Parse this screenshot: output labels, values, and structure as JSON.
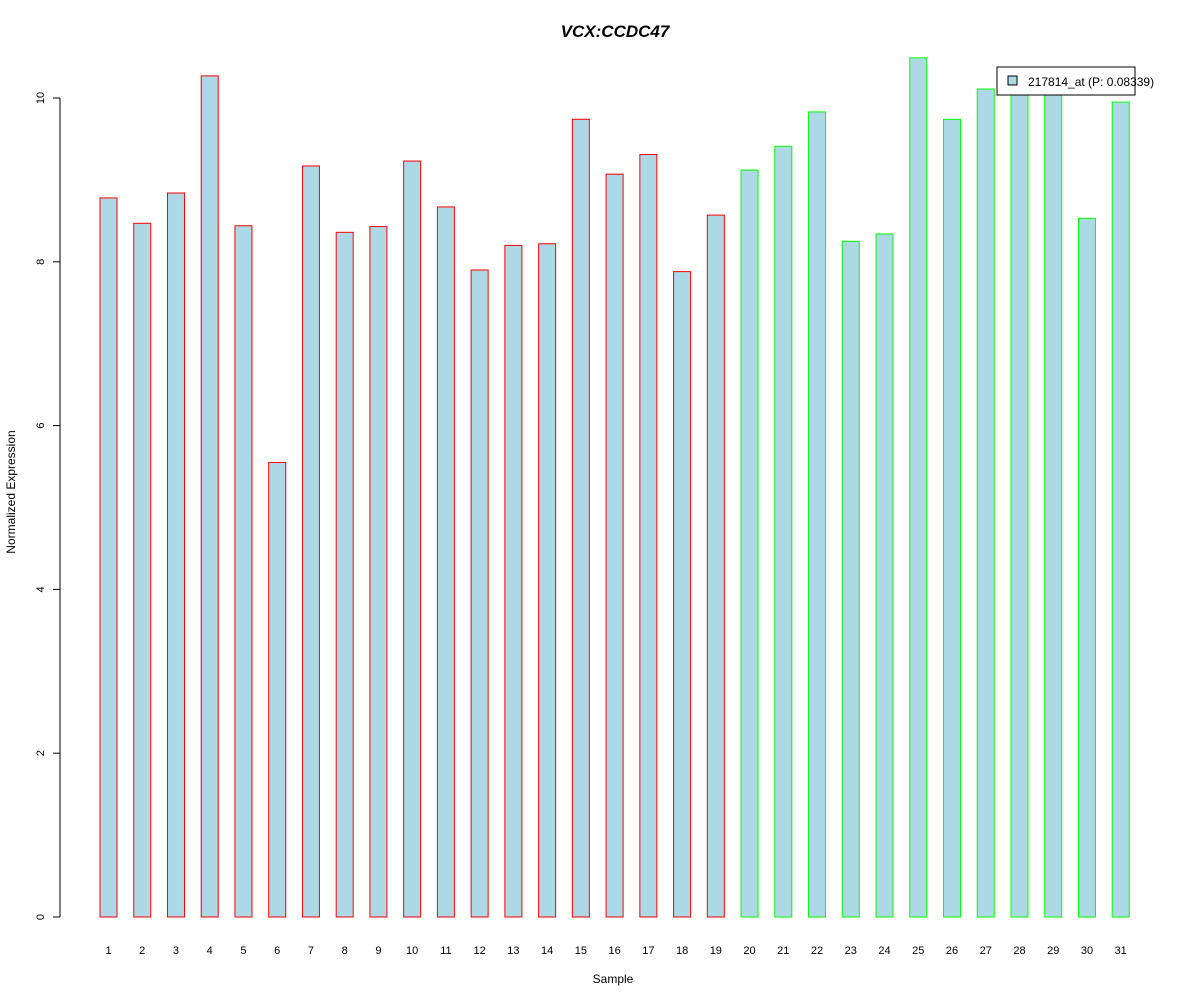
{
  "chart_data": {
    "type": "bar",
    "title": "VCX:CCDC47",
    "xlabel": "Sample",
    "ylabel": "Normalized Expression",
    "categories": [
      "1",
      "2",
      "3",
      "4",
      "5",
      "6",
      "7",
      "8",
      "9",
      "10",
      "11",
      "12",
      "13",
      "14",
      "15",
      "16",
      "17",
      "18",
      "19",
      "20",
      "21",
      "22",
      "23",
      "24",
      "25",
      "26",
      "27",
      "28",
      "29",
      "30",
      "31"
    ],
    "series": [
      {
        "name": "217814_at (P: 0.08339)",
        "values": [
          8.78,
          8.47,
          8.84,
          10.27,
          8.44,
          5.55,
          9.17,
          8.36,
          8.43,
          9.23,
          8.67,
          7.9,
          8.2,
          8.22,
          9.74,
          9.07,
          9.31,
          7.88,
          8.57,
          9.12,
          9.41,
          9.83,
          8.25,
          8.34,
          10.49,
          9.74,
          10.11,
          10.04,
          10.04,
          8.53,
          9.95
        ]
      }
    ],
    "groups": [
      {
        "samples": [
          1,
          19
        ],
        "border_color": "#ff0000"
      },
      {
        "samples": [
          20,
          31
        ],
        "border_color": "#00ff00"
      }
    ],
    "yticks": [
      0,
      2,
      4,
      6,
      8,
      10
    ],
    "ylim": [
      0,
      10.5
    ],
    "colors": {
      "fill": "#add8e6",
      "title": "#0000cd"
    },
    "legend_position": "top-right",
    "grid": false
  }
}
